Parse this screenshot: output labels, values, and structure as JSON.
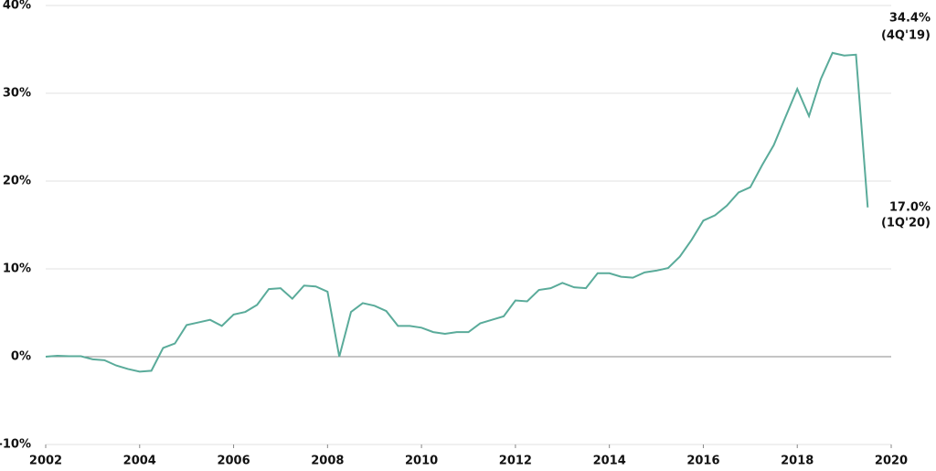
{
  "chart_data": {
    "type": "line",
    "x": [
      2002,
      2002.25,
      2002.5,
      2002.75,
      2003,
      2003.25,
      2003.5,
      2003.75,
      2004,
      2004.25,
      2004.5,
      2004.75,
      2005,
      2005.25,
      2005.5,
      2005.75,
      2006,
      2006.25,
      2006.5,
      2006.75,
      2007,
      2007.25,
      2007.5,
      2007.75,
      2008,
      2008.25,
      2008.5,
      2008.75,
      2009,
      2009.25,
      2009.5,
      2009.75,
      2010,
      2010.25,
      2010.5,
      2010.75,
      2011,
      2011.25,
      2011.5,
      2011.75,
      2012,
      2012.25,
      2012.5,
      2012.75,
      2013,
      2013.25,
      2013.5,
      2013.75,
      2014,
      2014.25,
      2014.5,
      2014.75,
      2015,
      2015.25,
      2015.5,
      2015.75,
      2016,
      2016.25,
      2016.5,
      2016.75,
      2017,
      2017.25,
      2017.5,
      2017.75,
      2018,
      2018.25,
      2018.5,
      2018.75,
      2019,
      2019.25,
      2019.5
    ],
    "series": [
      {
        "color": "#5aab9a",
        "values": [
          0,
          0.1,
          0.05,
          0.05,
          -0.3,
          -0.4,
          -1.0,
          -1.4,
          -1.7,
          -1.6,
          1.0,
          1.5,
          3.6,
          3.9,
          4.2,
          3.5,
          4.8,
          5.1,
          5.9,
          7.7,
          7.8,
          6.6,
          8.1,
          8.0,
          7.4,
          0.0,
          5.1,
          6.1,
          5.8,
          5.2,
          3.5,
          3.5,
          3.3,
          2.8,
          2.6,
          2.8,
          2.8,
          3.8,
          4.2,
          4.6,
          6.4,
          6.3,
          7.6,
          7.8,
          8.4,
          7.9,
          7.8,
          9.5,
          9.5,
          9.1,
          9.0,
          9.6,
          9.8,
          10.1,
          11.4,
          13.3,
          15.5,
          16.1,
          17.2,
          18.7,
          19.3,
          21.8,
          24.1,
          27.3,
          30.5,
          27.4,
          31.6,
          34.6,
          34.3,
          34.4,
          17.0
        ]
      }
    ],
    "annotations": [
      {
        "value": "34.4%",
        "period": "(4Q'19)"
      },
      {
        "value": "17.0%",
        "period": "(1Q'20)"
      }
    ],
    "xlim": [
      2002,
      2020
    ],
    "xticks": [
      2002,
      2004,
      2006,
      2008,
      2010,
      2012,
      2014,
      2016,
      2018,
      2020
    ],
    "ylim": [
      -10,
      40
    ],
    "yticks": [
      {
        "value": -10,
        "label": "-10%"
      },
      {
        "value": 0,
        "label": "0%"
      },
      {
        "value": 10,
        "label": "10%"
      },
      {
        "value": 20,
        "label": "20%"
      },
      {
        "value": 30,
        "label": "30%"
      },
      {
        "value": 40,
        "label": "40%"
      }
    ],
    "grid": true
  }
}
